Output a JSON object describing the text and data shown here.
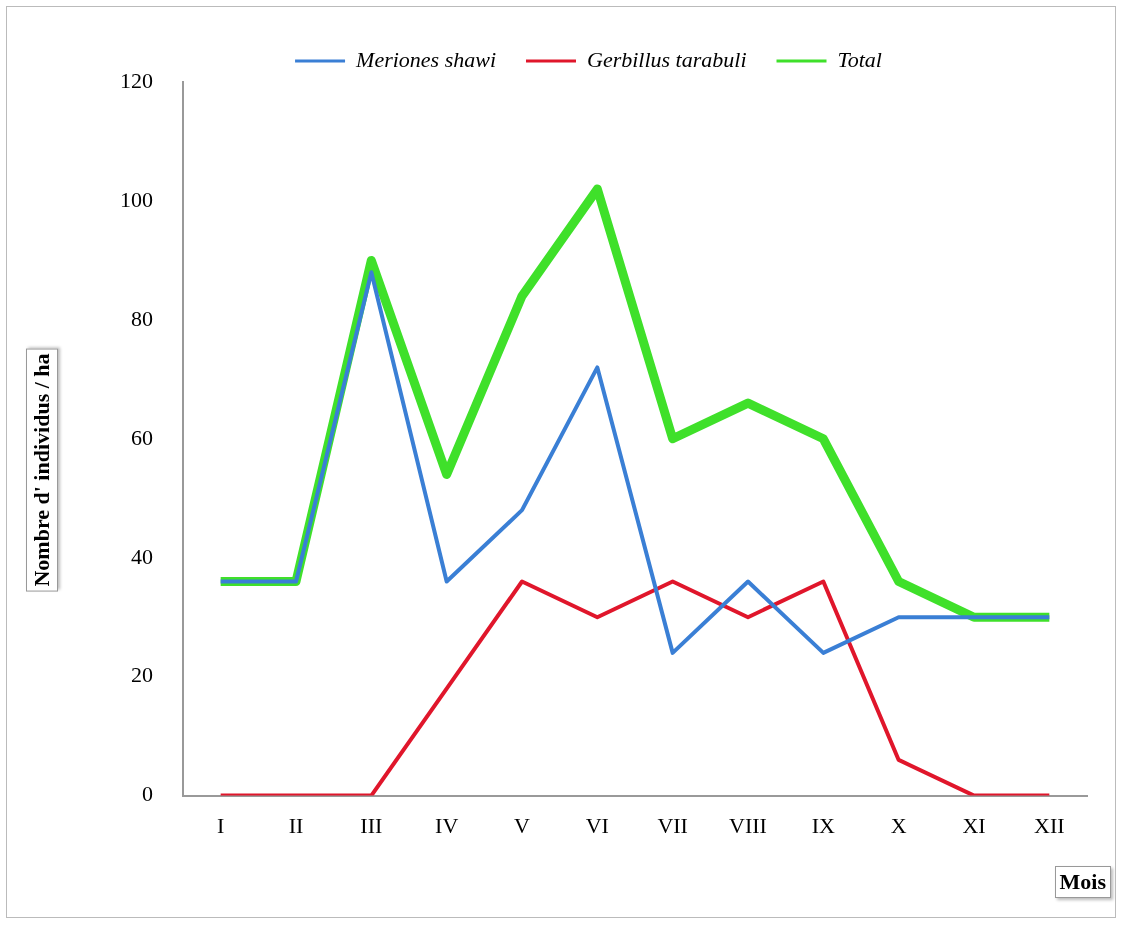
{
  "chart_data": {
    "type": "line",
    "categories": [
      "I",
      "II",
      "III",
      "IV",
      "V",
      "VI",
      "VII",
      "VIII",
      "IX",
      "X",
      "XI",
      "XII"
    ],
    "series": [
      {
        "name": "Meriones shawi",
        "color": "#3a7fd5",
        "values": [
          36,
          36,
          88,
          36,
          48,
          72,
          24,
          36,
          24,
          30,
          30,
          30
        ]
      },
      {
        "name": "Gerbillus tarabuli",
        "color": "#e0162b",
        "values": [
          0,
          0,
          0,
          18,
          36,
          30,
          36,
          30,
          36,
          6,
          0,
          0
        ]
      },
      {
        "name": "Total",
        "color": "#3fe02a",
        "values": [
          36,
          36,
          90,
          54,
          84,
          102,
          60,
          66,
          60,
          36,
          30,
          30
        ]
      }
    ],
    "xlabel": "Mois",
    "ylabel": "Nombre d' individus / ha",
    "ylim": [
      0,
      120
    ],
    "yticks": [
      0,
      20,
      40,
      60,
      80,
      100,
      120
    ],
    "grid": false,
    "legend": "top",
    "marker": "none",
    "line_style": "solid"
  }
}
